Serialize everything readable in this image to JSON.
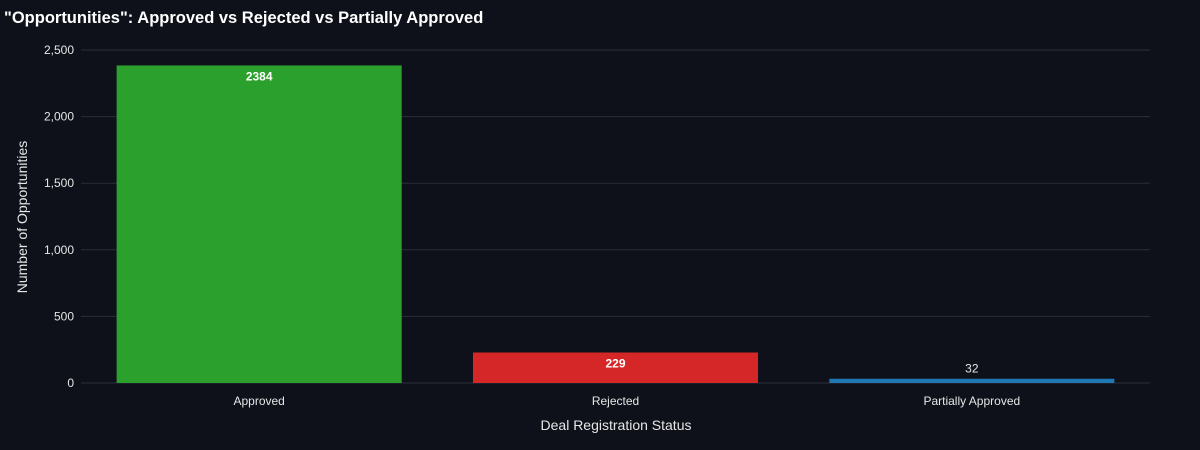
{
  "chart_data": {
    "type": "bar",
    "title": "\"Opportunities\": Approved vs Rejected vs Partially Approved",
    "xlabel": "Deal Registration Status",
    "ylabel": "Number of Opportunities",
    "categories": [
      "Approved",
      "Rejected",
      "Partially Approved"
    ],
    "values": [
      2384,
      229,
      32
    ],
    "data_labels": [
      "2384",
      "229",
      "32"
    ],
    "colors": [
      "#2ca02c",
      "#d62728",
      "#1f77b4"
    ],
    "ylim": [
      0,
      2500
    ],
    "yticks": [
      0,
      500,
      1000,
      1500,
      2000,
      2500
    ],
    "ytick_labels": [
      "0",
      "500",
      "1,000",
      "1,500",
      "2,000",
      "2,500"
    ],
    "grid": true,
    "legend": "none",
    "background_color": "#0e111a",
    "gridline_color": "#2a2e39"
  }
}
